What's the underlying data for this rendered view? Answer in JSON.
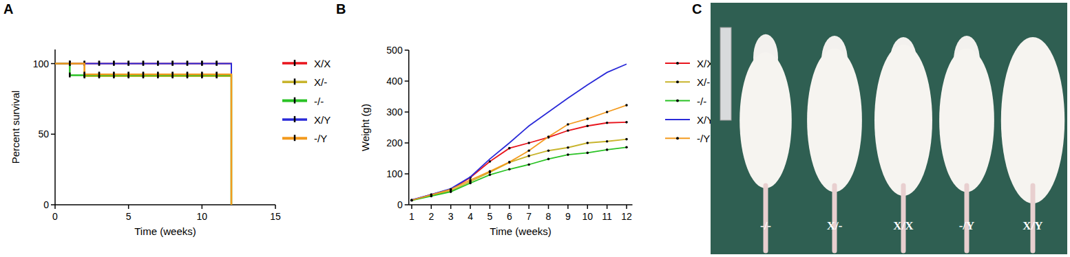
{
  "chart_data": [
    {
      "type": "line",
      "title": "A",
      "x_label": "Time (weeks)",
      "y_label": "Percent survival",
      "xlim": [
        0,
        15
      ],
      "xticks": [
        0,
        5,
        10,
        15
      ],
      "ylim": [
        0,
        110
      ],
      "yticks": [
        0,
        50,
        100
      ],
      "line_style": "step",
      "marker": "censor",
      "legend": "right",
      "x": [
        0,
        1,
        2,
        3,
        4,
        5,
        6,
        7,
        8,
        9,
        10,
        11,
        12
      ],
      "series": [
        {
          "name": "X/X",
          "color": "#e8141c",
          "values": [
            100,
            100,
            100,
            100,
            100,
            100,
            100,
            100,
            100,
            100,
            100,
            100,
            0
          ]
        },
        {
          "name": "X/-",
          "color": "#c8b42c",
          "values": [
            100,
            100,
            91,
            91,
            91,
            91,
            91,
            91,
            91,
            91,
            91,
            91,
            0
          ]
        },
        {
          "name": "-/-",
          "color": "#29c224",
          "values": [
            100,
            91.7,
            91.7,
            91.7,
            91.7,
            91.7,
            91.7,
            91.7,
            91.7,
            91.7,
            91.7,
            91.7,
            0
          ]
        },
        {
          "name": "X/Y",
          "color": "#2a2ad8",
          "values": [
            100,
            100,
            100,
            100,
            100,
            100,
            100,
            100,
            100,
            100,
            100,
            100,
            0
          ]
        },
        {
          "name": "-/Y",
          "color": "#f39a1e",
          "values": [
            100,
            100,
            92.3,
            92.3,
            92.3,
            92.3,
            92.3,
            92.3,
            92.3,
            92.3,
            92.3,
            92.3,
            0
          ]
        }
      ]
    },
    {
      "type": "line",
      "title": "B",
      "x_label": "Time (weeks)",
      "y_label": "Weight (g)",
      "xlim": [
        0.85,
        12.3
      ],
      "xticks": [
        1,
        2,
        3,
        4,
        5,
        6,
        7,
        8,
        9,
        10,
        11,
        12
      ],
      "ylim": [
        0,
        500
      ],
      "yticks": [
        0,
        100,
        200,
        300,
        400,
        500
      ],
      "legend": "right",
      "x": [
        1,
        2,
        3,
        4,
        5,
        6,
        7,
        8,
        9,
        10,
        11,
        12
      ],
      "series": [
        {
          "name": "X/X",
          "color": "#e8141c",
          "marker": "dot",
          "values": [
            15,
            33,
            50,
            88,
            140,
            183,
            200,
            218,
            240,
            255,
            265,
            267
          ]
        },
        {
          "name": "X/-",
          "color": "#c8b42c",
          "marker": "dot",
          "values": [
            15,
            30,
            45,
            75,
            105,
            137,
            158,
            175,
            185,
            200,
            205,
            212
          ]
        },
        {
          "name": "-/-",
          "color": "#29c224",
          "marker": "dot",
          "values": [
            14,
            28,
            42,
            70,
            97,
            115,
            130,
            148,
            162,
            168,
            178,
            186
          ]
        },
        {
          "name": "X/Y",
          "color": "#2a2ad8",
          "marker": "none",
          "values": [
            16,
            33,
            52,
            90,
            148,
            200,
            255,
            300,
            345,
            388,
            428,
            455
          ]
        },
        {
          "name": "-/Y",
          "color": "#f39a1e",
          "marker": "dot",
          "values": [
            15,
            32,
            50,
            80,
            108,
            138,
            175,
            220,
            260,
            278,
            300,
            322
          ]
        }
      ]
    }
  ],
  "photo": {
    "title": "C",
    "labels": [
      "-/-",
      "X/-",
      "X/X",
      "-/Y",
      "X/Y"
    ]
  }
}
